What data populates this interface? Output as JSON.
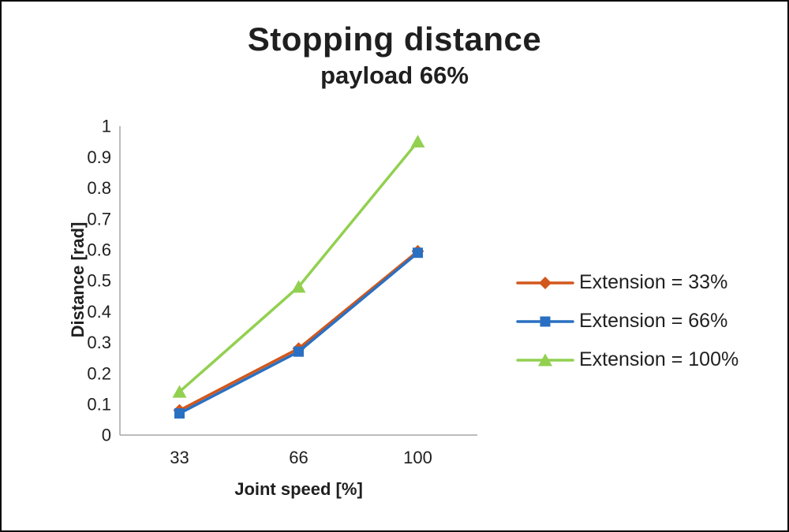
{
  "title": "Stopping distance",
  "subtitle": "payload 66%",
  "chart_data": {
    "type": "line",
    "x": [
      33,
      66,
      100
    ],
    "xlabel": "Joint speed [%]",
    "ylabel": "Distance [rad]",
    "ylim": [
      0,
      1
    ],
    "ytick_step": 0.1,
    "grid": false,
    "legend_position": "right",
    "series": [
      {
        "name": "Extension = 33%",
        "marker": "diamond",
        "color": "#d2571c",
        "values": [
          0.08,
          0.28,
          0.595
        ]
      },
      {
        "name": "Extension = 66%",
        "marker": "square",
        "color": "#2a70c2",
        "values": [
          0.07,
          0.27,
          0.59
        ]
      },
      {
        "name": "Extension = 100%",
        "marker": "triangle",
        "color": "#92d050",
        "values": [
          0.14,
          0.48,
          0.95
        ]
      }
    ]
  },
  "colors": {
    "text": "#1f1f1f",
    "axis": "#a6a6a6",
    "background": "#ffffff",
    "border": "#0d0d0d"
  }
}
